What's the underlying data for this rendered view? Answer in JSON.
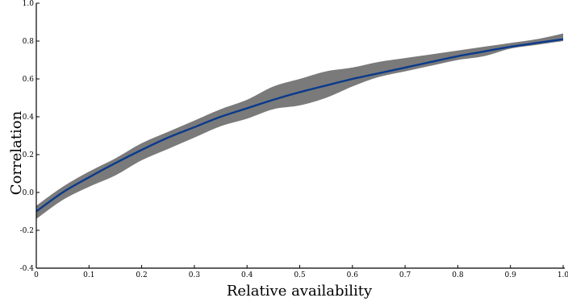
{
  "chart_data": {
    "type": "line",
    "xlabel": "Relative availability",
    "ylabel": "Correlation",
    "xlim": [
      0,
      1.0
    ],
    "ylim": [
      -0.4,
      1.0
    ],
    "xticks": [
      "0",
      "0.1",
      "0.2",
      "0.3",
      "0.4",
      "0.5",
      "0.6",
      "0.7",
      "0.8",
      "0.9",
      "1.0"
    ],
    "yticks": [
      "-0.4",
      "-0.2",
      "0.0",
      "0.2",
      "0.4",
      "0.6",
      "0.8",
      "1.0"
    ],
    "grid": false,
    "colors": {
      "line": "#0a3a8c",
      "band": "#7a7a7a",
      "axis": "#000000"
    },
    "series": [
      {
        "x": [
          0,
          0.05,
          0.1,
          0.15,
          0.2,
          0.25,
          0.3,
          0.35,
          0.4,
          0.45,
          0.5,
          0.55,
          0.6,
          0.65,
          0.7,
          0.75,
          0.8,
          0.85,
          0.9,
          0.95,
          1.0
        ],
        "values": [
          -0.1,
          0.0,
          0.08,
          0.155,
          0.225,
          0.29,
          0.345,
          0.4,
          0.445,
          0.49,
          0.53,
          0.565,
          0.6,
          0.63,
          0.66,
          0.69,
          0.72,
          0.745,
          0.77,
          0.79,
          0.81
        ],
        "lower": [
          -0.14,
          -0.04,
          0.03,
          0.09,
          0.17,
          0.23,
          0.29,
          0.35,
          0.39,
          0.44,
          0.46,
          0.5,
          0.56,
          0.61,
          0.64,
          0.67,
          0.7,
          0.72,
          0.76,
          0.78,
          0.8
        ],
        "upper": [
          -0.07,
          0.03,
          0.11,
          0.18,
          0.26,
          0.32,
          0.38,
          0.44,
          0.49,
          0.56,
          0.6,
          0.64,
          0.66,
          0.69,
          0.71,
          0.73,
          0.75,
          0.77,
          0.79,
          0.81,
          0.84
        ]
      }
    ]
  }
}
